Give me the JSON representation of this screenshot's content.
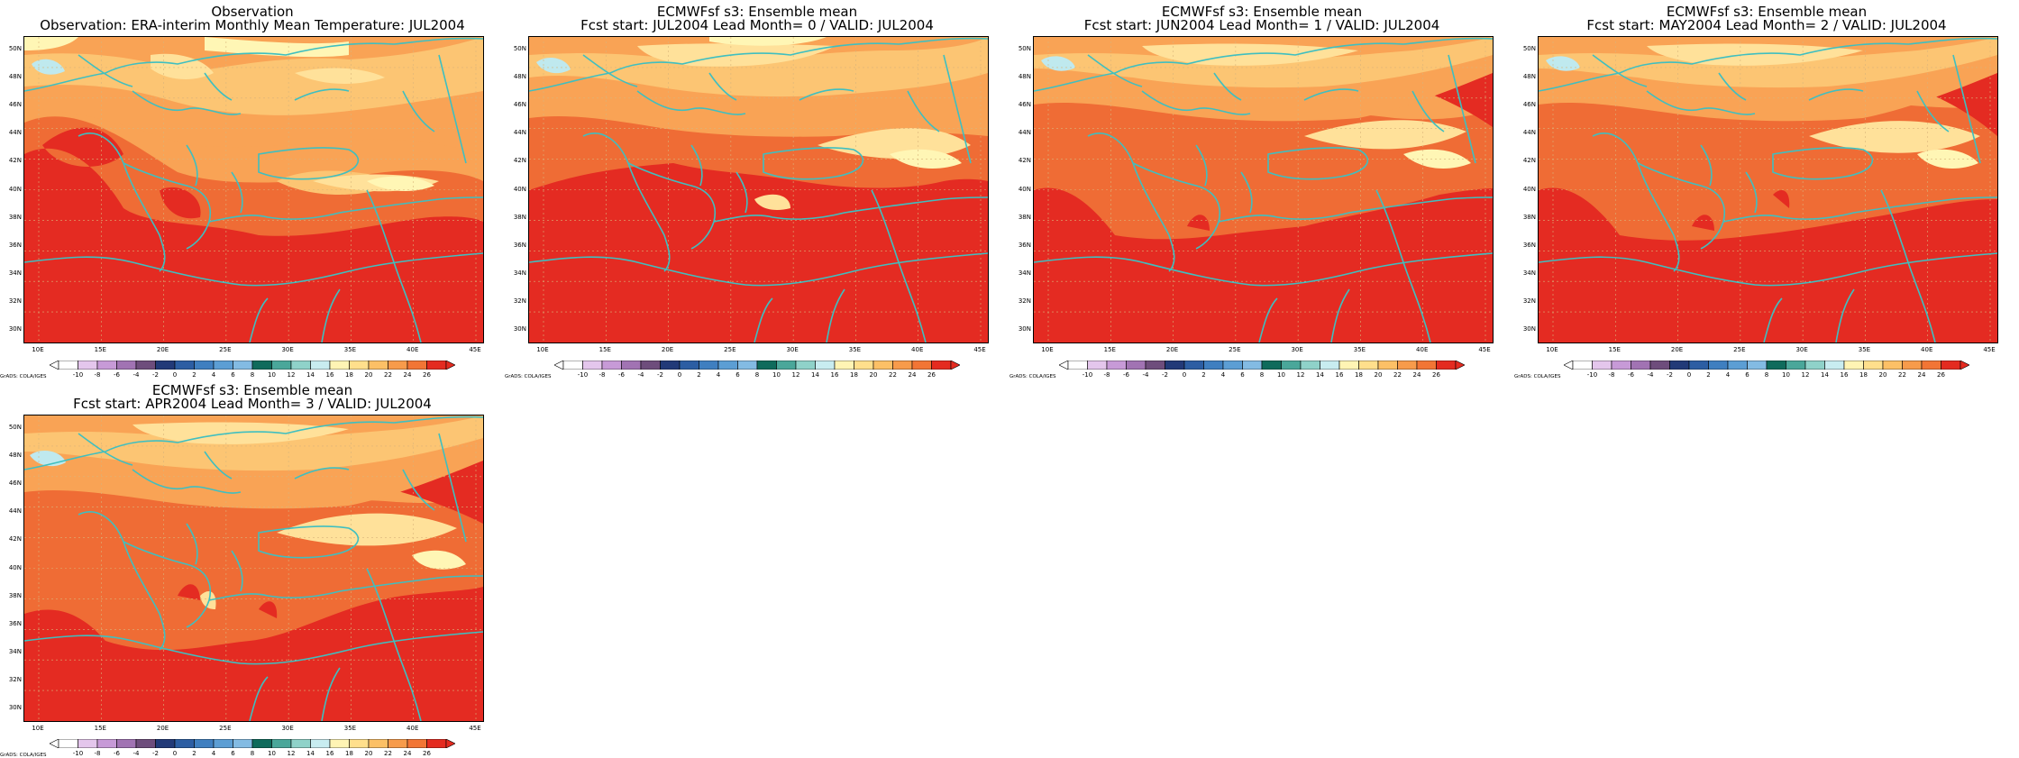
{
  "panels": [
    {
      "title_line1": "Observation",
      "title_line2": "Observation: ERA-interim Monthly Mean Temperature: JUL2004",
      "variant": "obs"
    },
    {
      "title_line1": "ECMWFsf s3: Ensemble mean",
      "title_line2": "Fcst start: JUL2004  Lead Month= 0 / VALID: JUL2004",
      "variant": "lead0"
    },
    {
      "title_line1": "ECMWFsf s3: Ensemble mean",
      "title_line2": "Fcst start: JUN2004  Lead Month= 1 / VALID: JUL2004",
      "variant": "lead1"
    },
    {
      "title_line1": "ECMWFsf s3: Ensemble mean",
      "title_line2": "Fcst start: MAY2004  Lead Month= 2 / VALID: JUL2004",
      "variant": "lead2"
    },
    {
      "title_line1": "ECMWFsf s3: Ensemble mean",
      "title_line2": "Fcst start: APR2004  Lead Month= 3 / VALID: JUL2004",
      "variant": "lead3"
    }
  ],
  "lat_labels": [
    "50N",
    "48N",
    "46N",
    "44N",
    "42N",
    "40N",
    "38N",
    "36N",
    "34N",
    "32N",
    "30N"
  ],
  "lon_labels": [
    "10E",
    "15E",
    "20E",
    "25E",
    "30E",
    "35E",
    "40E",
    "45E"
  ],
  "colorbar": {
    "ticks": [
      "-10",
      "-8",
      "-6",
      "-4",
      "-2",
      "0",
      "2",
      "4",
      "6",
      "8",
      "10",
      "12",
      "14",
      "16",
      "18",
      "20",
      "22",
      "24",
      "26"
    ],
    "colors": [
      "#ffffff",
      "#e4c6ec",
      "#c79ad7",
      "#a173b3",
      "#6e4d7c",
      "#223a78",
      "#2c5ea3",
      "#3f7fc0",
      "#5c9ed4",
      "#83bbe3",
      "#0f6b5c",
      "#4aa79a",
      "#8fd2c9",
      "#c8ecf0",
      "#fff4b4",
      "#ffdf8c",
      "#fcc066",
      "#f79b4b",
      "#f27535",
      "#e42b20"
    ],
    "credit": "GrADS: COLA/IGES"
  },
  "temperature_colors": {
    "c14": "#bfe9ee",
    "c18": "#fff6b5",
    "c20": "#ffe19a",
    "c22": "#fcc573",
    "c24": "#f9a355",
    "c26": "#ef6c35",
    "c28": "#e42b22"
  }
}
